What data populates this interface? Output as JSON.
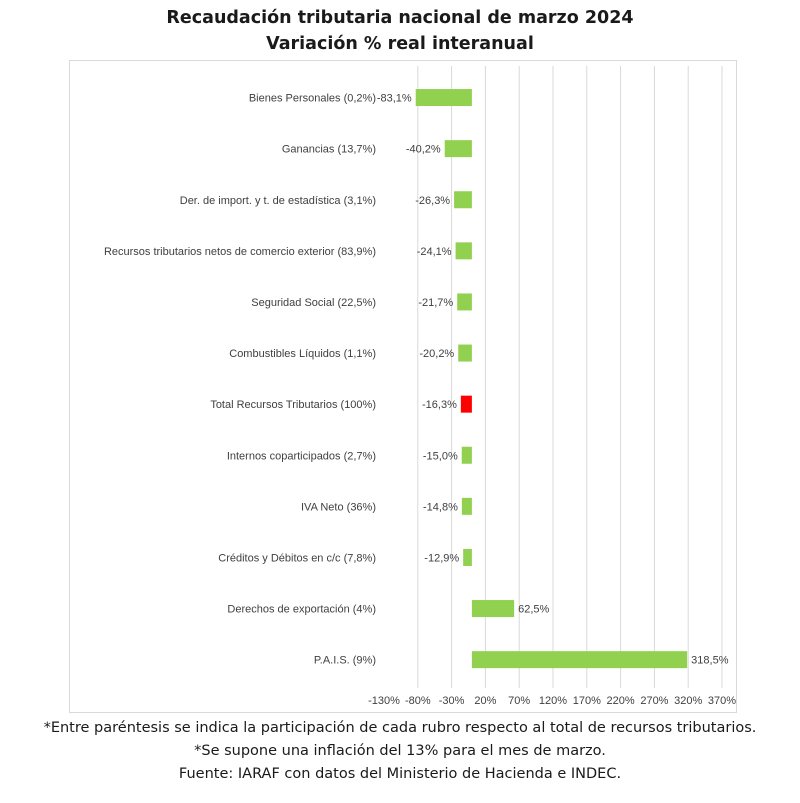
{
  "chart_data": {
    "type": "bar",
    "orientation": "horizontal",
    "title": "Recaudación tributaria nacional de marzo 2024",
    "subtitle": "Variación % real interanual",
    "categories": [
      "Bienes Personales (0,2%)",
      "Ganancias (13,7%)",
      "Der. de import. y t. de estadística (3,1%)",
      "Recursos tributarios netos de comercio exterior (83,9%)",
      "Seguridad Social (22,5%)",
      "Combustibles Líquidos (1,1%)",
      "Total Recursos Tributarios (100%)",
      "Internos coparticipados (2,7%)",
      "IVA Neto (36%)",
      "Créditos y Débitos en c/c (7,8%)",
      "Derechos de exportación (4%)",
      "P.A.I.S. (9%)"
    ],
    "values": [
      -83.1,
      -40.2,
      -26.3,
      -24.1,
      -21.7,
      -20.2,
      -16.3,
      -15.0,
      -14.8,
      -12.9,
      62.5,
      318.5
    ],
    "data_labels": [
      "-83,1%",
      "-40,2%",
      "-26,3%",
      "-24,1%",
      "-21,7%",
      "-20,2%",
      "-16,3%",
      "-15,0%",
      "-14,8%",
      "-12,9%",
      "62,5%",
      "318,5%"
    ],
    "colors": [
      "#92d050",
      "#92d050",
      "#92d050",
      "#92d050",
      "#92d050",
      "#92d050",
      "#ff0000",
      "#92d050",
      "#92d050",
      "#92d050",
      "#92d050",
      "#92d050"
    ],
    "xlim": [
      -130,
      370
    ],
    "x_ticks": [
      -130,
      -80,
      -30,
      20,
      70,
      120,
      170,
      220,
      270,
      320,
      370
    ],
    "x_tick_labels": [
      "-130%",
      "-80%",
      "-30%",
      "20%",
      "70%",
      "120%",
      "170%",
      "220%",
      "270%",
      "320%",
      "370%"
    ],
    "grid": "vertical",
    "legend": "none"
  },
  "footnotes": [
    "*Entre paréntesis se indica la participación de cada rubro respecto al total de recursos tributarios.",
    "*Se supone una inflación del 13% para el mes de marzo.",
    "Fuente: IARAF con datos del Ministerio de Hacienda e INDEC."
  ]
}
